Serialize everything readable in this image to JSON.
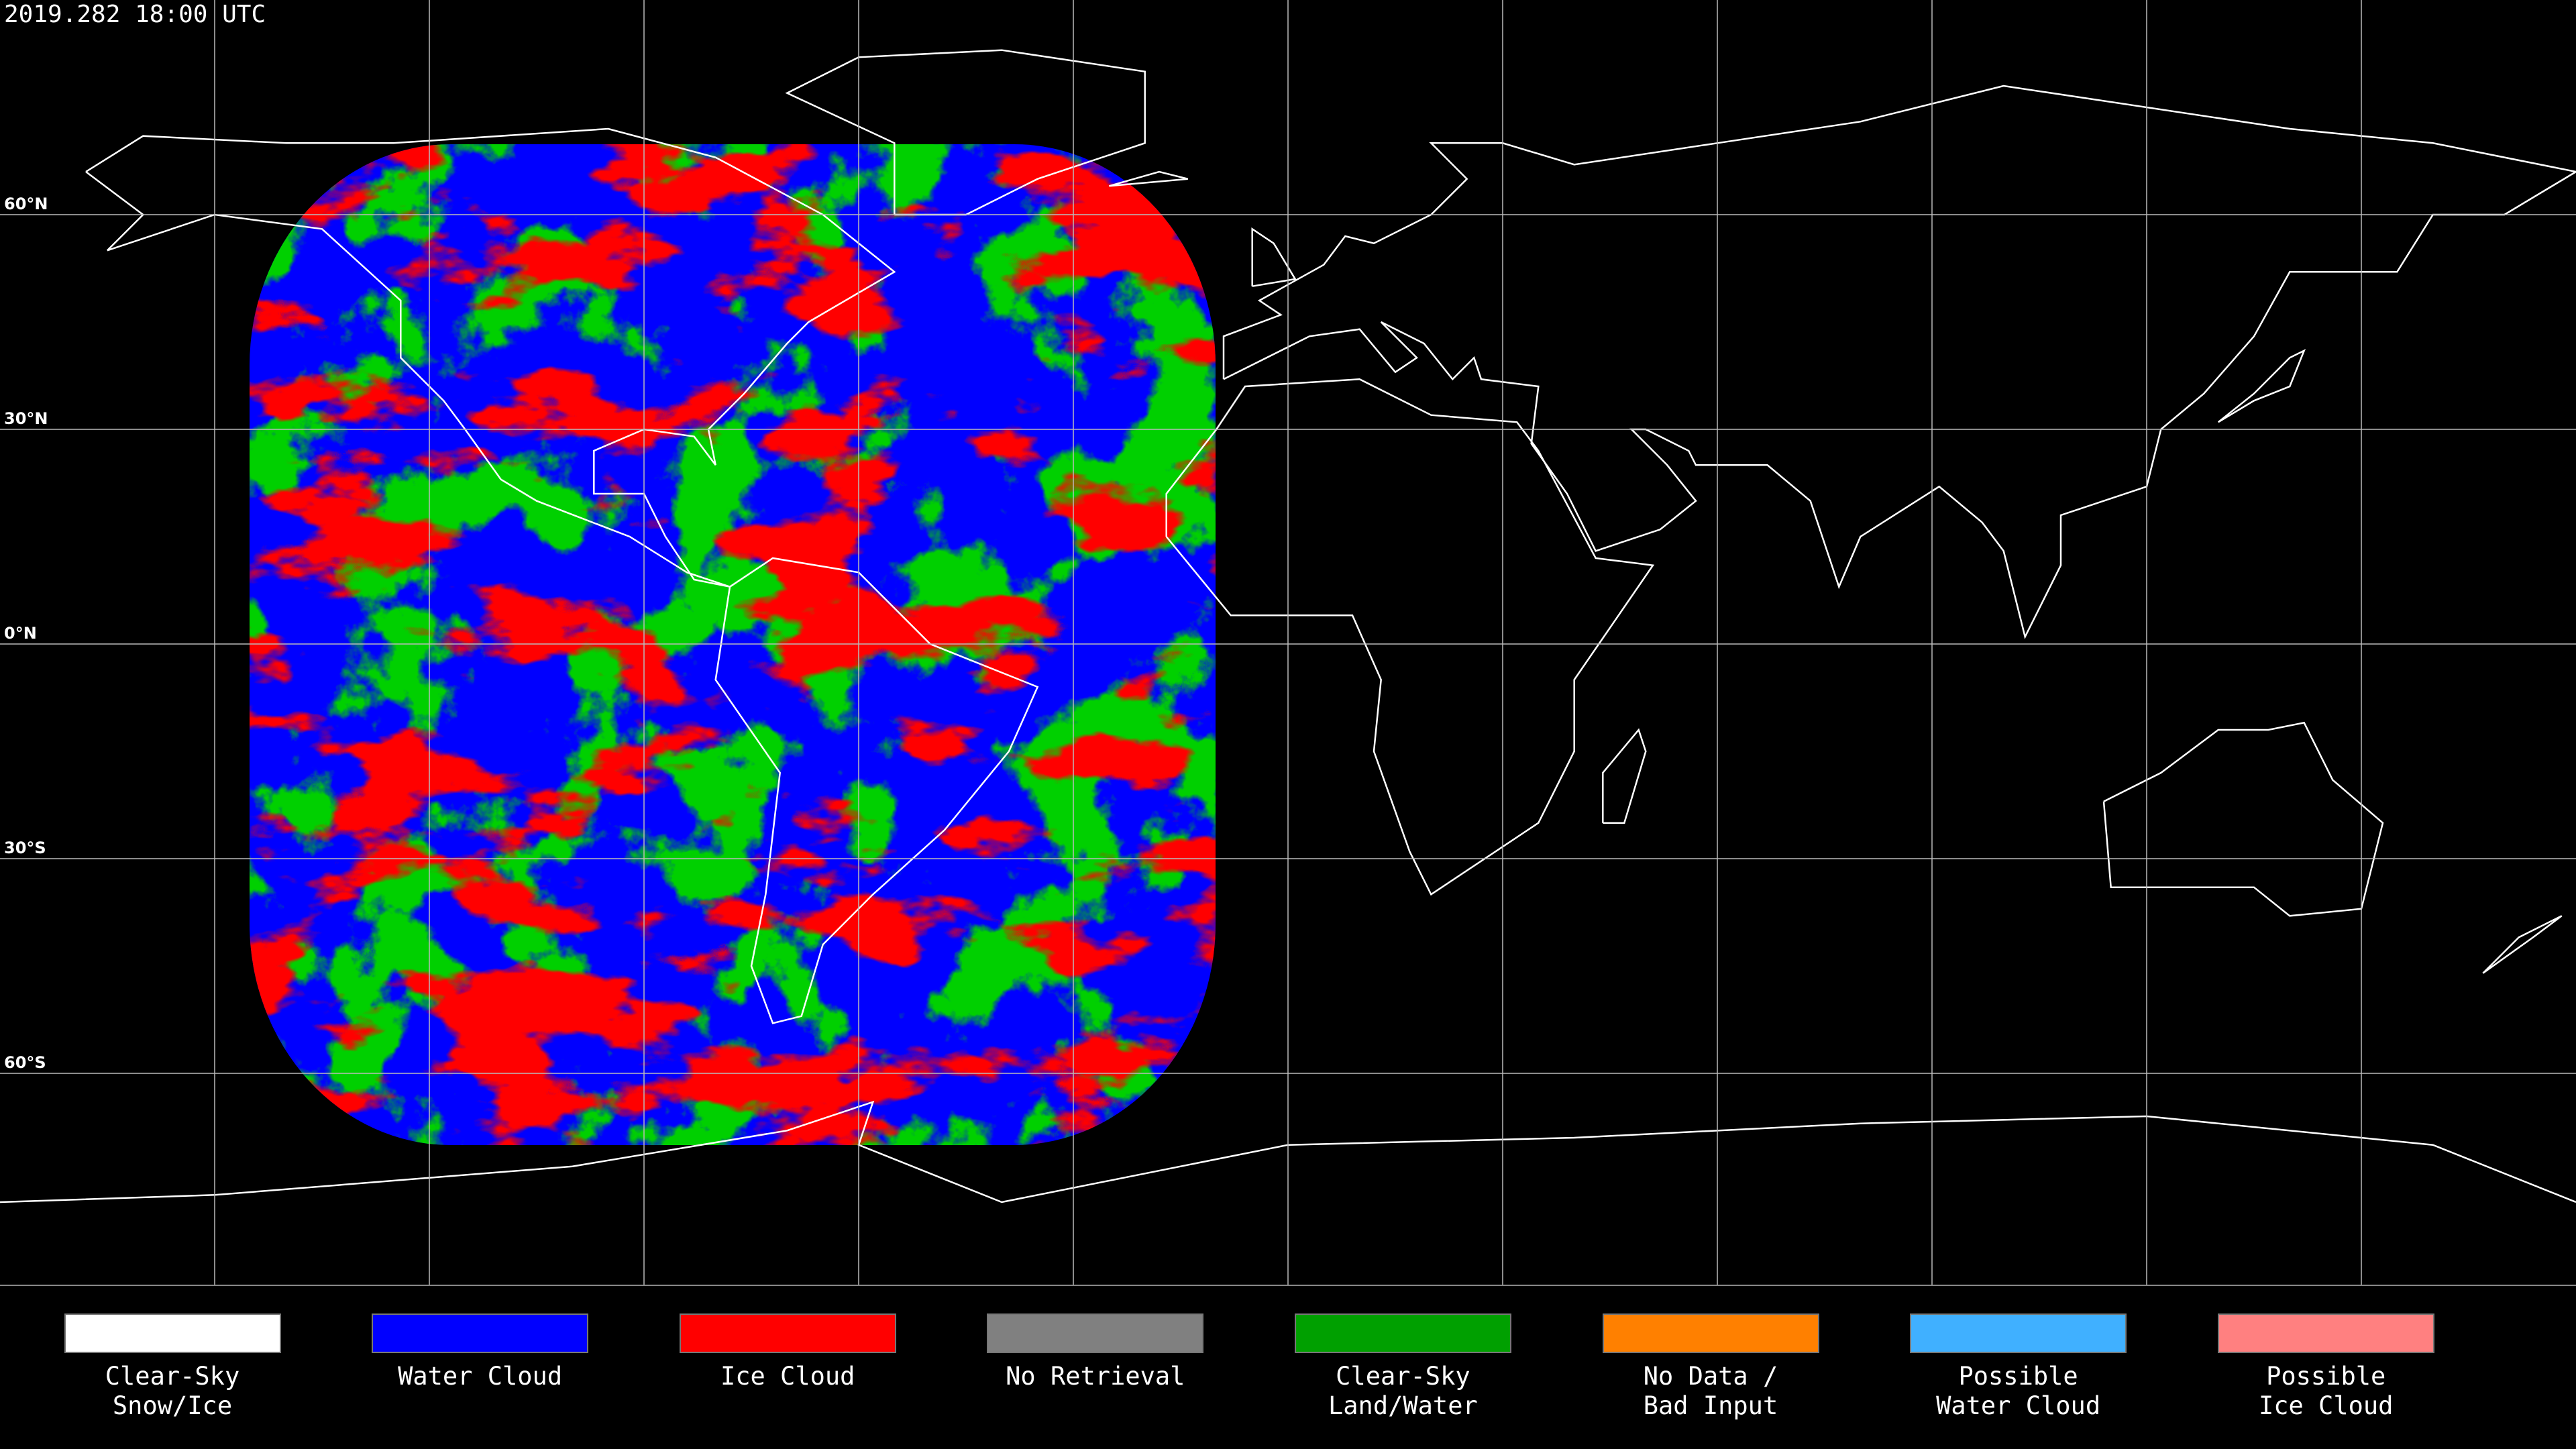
{
  "timestamp": "2019.282 18:00 UTC",
  "lat_labels": [
    "60°N",
    "30°N",
    "0°N",
    "30°S",
    "60°S"
  ],
  "legend": [
    {
      "label": "Clear-Sky\nSnow/Ice",
      "color": "#ffffff"
    },
    {
      "label": "Water Cloud",
      "color": "#0000ff"
    },
    {
      "label": "Ice Cloud",
      "color": "#ff0000"
    },
    {
      "label": "No Retrieval",
      "color": "#808080"
    },
    {
      "label": "Clear-Sky\nLand/Water",
      "color": "#00a000"
    },
    {
      "label": "No Data /\nBad Input",
      "color": "#ff8000"
    },
    {
      "label": "Possible\nWater Cloud",
      "color": "#40b0ff"
    },
    {
      "label": "Possible\nIce Cloud",
      "color": "#ff8080"
    }
  ]
}
